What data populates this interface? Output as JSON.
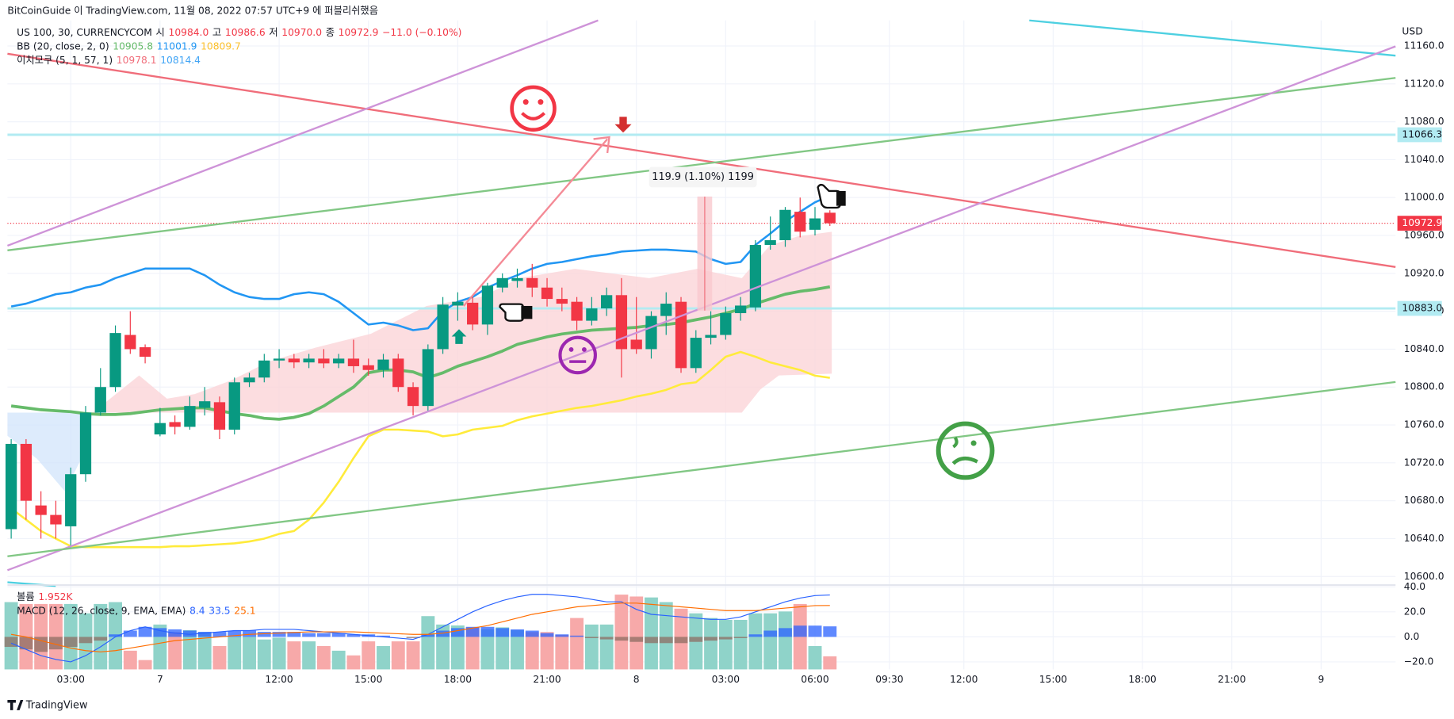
{
  "header": {
    "publisher": "BitCoinGuide 이 TradingView.com, 11월 08, 2022 07:57 UTC+9 에 퍼블리쉬했음",
    "footer": "TradingView"
  },
  "chart_data": [
    {
      "type": "candlestick",
      "legend": {
        "symbol": "US 100, 30, CURRENCYCOM",
        "ohlc": [
          [
            "시",
            "10984.0"
          ],
          [
            "고",
            "10986.6"
          ],
          [
            "저",
            "10970.0"
          ],
          [
            "종",
            "10972.9"
          ]
        ],
        "change": "−11.0 (−0.10%)",
        "bb": "BB (20, close, 2, 0)",
        "bb_values": [
          "10905.8",
          "11001.9",
          "10809.7"
        ],
        "ichimoku": "이치모쿠 (5, 1, 57, 1)",
        "ichimoku_values": [
          "10978.1",
          "10814.4"
        ]
      },
      "currency": "USD",
      "annotation": "119.9 (1.10%) 1199",
      "up_color": "#089981",
      "down_color": "#f23645",
      "open": [
        10650,
        10740,
        10675,
        10665,
        10653,
        10708,
        10773,
        10800,
        10855,
        10842,
        10750,
        10763,
        10758,
        10778,
        10784,
        10755,
        10805,
        10810,
        10828,
        10830,
        10826,
        10830,
        10825,
        10830,
        10823,
        10818,
        10830,
        10800,
        10780,
        10840,
        10886,
        10889,
        10866,
        10905,
        10912,
        10915,
        10905,
        10893,
        10890,
        10870,
        10883,
        10897,
        10850,
        10840,
        10875,
        10890,
        10820,
        10852,
        10855,
        10878,
        10884,
        10950,
        10955,
        10985,
        10966,
        10984
      ],
      "high": [
        10745,
        10745,
        10690,
        10680,
        10715,
        10780,
        10820,
        10865,
        10880,
        10845,
        10778,
        10770,
        10790,
        10800,
        10790,
        10810,
        10815,
        10835,
        10840,
        10835,
        10835,
        10840,
        10835,
        10850,
        10830,
        10835,
        10835,
        10805,
        10845,
        10895,
        10900,
        10895,
        10910,
        10920,
        10925,
        10930,
        10915,
        10905,
        10895,
        10895,
        10905,
        10915,
        10895,
        10880,
        10900,
        10895,
        10860,
        10880,
        10885,
        10895,
        10955,
        10980,
        10990,
        11000,
        10990,
        10986.6
      ],
      "low": [
        10640,
        10660,
        10640,
        10640,
        10630,
        10700,
        10770,
        10795,
        10835,
        10825,
        10748,
        10750,
        10755,
        10770,
        10745,
        10750,
        10800,
        10805,
        10820,
        10820,
        10820,
        10820,
        10820,
        10815,
        10812,
        10810,
        10795,
        10770,
        10775,
        10835,
        10870,
        10860,
        10855,
        10900,
        10905,
        10895,
        10885,
        10880,
        10860,
        10865,
        10875,
        10810,
        10835,
        10830,
        10855,
        10815,
        10815,
        10845,
        10850,
        10870,
        10880,
        10945,
        10948,
        10958,
        10960,
        10970
      ],
      "close": [
        10740,
        10680,
        10665,
        10655,
        10708,
        10773,
        10800,
        10857,
        10840,
        10832,
        10762,
        10758,
        10780,
        10785,
        10755,
        10805,
        10810,
        10828,
        10830,
        10826,
        10830,
        10825,
        10830,
        10822,
        10818,
        10829,
        10800,
        10780,
        10840,
        10887,
        10890,
        10866,
        10907,
        10915,
        10915,
        10905,
        10893,
        10888,
        10870,
        10883,
        10897,
        10840,
        10840,
        10875,
        10888,
        10820,
        10852,
        10855,
        10878,
        10886,
        10950,
        10955,
        10987,
        10964,
        10978,
        10972.9
      ],
      "series": [
        {
          "color": "#2196f3",
          "width": 2.2,
          "values": [
            10885,
            10888,
            10893,
            10898,
            10900,
            10905,
            10908,
            10915,
            10920,
            10925,
            10925,
            10925,
            10925,
            10918,
            10908,
            10900,
            10895,
            10893,
            10893,
            10898,
            10900,
            10898,
            10890,
            10878,
            10866,
            10868,
            10865,
            10860,
            10862,
            10880,
            10890,
            10895,
            10905,
            10912,
            10918,
            10925,
            10930,
            10932,
            10935,
            10938,
            10940,
            10943,
            10944,
            10945,
            10945,
            10944,
            10943,
            10935,
            10930,
            10932,
            10950,
            10962,
            10975,
            10985,
            10995,
            11001.9
          ]
        },
        {
          "color": "#66bb6a",
          "width": 3.2,
          "values": [
            10780,
            10778,
            10776,
            10775,
            10774,
            10772,
            10771,
            10771,
            10772,
            10774,
            10776,
            10777,
            10778,
            10778,
            10775,
            10772,
            10770,
            10767,
            10766,
            10768,
            10772,
            10780,
            10790,
            10800,
            10815,
            10818,
            10818,
            10816,
            10810,
            10815,
            10822,
            10827,
            10832,
            10838,
            10845,
            10849,
            10853,
            10856,
            10858,
            10860,
            10861,
            10862,
            10863,
            10865,
            10866,
            10868,
            10871,
            10874,
            10878,
            10882,
            10888,
            10893,
            10898,
            10901,
            10903,
            10905.8
          ]
        },
        {
          "color": "#ffeb3b",
          "width": 2.2,
          "values": [
            10672,
            10660,
            10648,
            10640,
            10632,
            10631,
            10631,
            10631,
            10631,
            10631,
            10631,
            10632,
            10632,
            10633,
            10634,
            10635,
            10637,
            10640,
            10645,
            10648,
            10660,
            10678,
            10700,
            10725,
            10748,
            10755,
            10755,
            10754,
            10753,
            10748,
            10750,
            10755,
            10757,
            10759,
            10765,
            10769,
            10772,
            10775,
            10778,
            10780,
            10783,
            10786,
            10790,
            10793,
            10797,
            10803,
            10805,
            10818,
            10832,
            10837,
            10832,
            10826,
            10822,
            10818,
            10812,
            10809.7
          ]
        }
      ],
      "levels": [
        {
          "value": 11066.3,
          "label": "11066.3",
          "color": "#b2ebf2"
        },
        {
          "value": 10883,
          "label": "10883.0",
          "color": "#b2ebf2"
        }
      ],
      "last_price": {
        "value": 10972.9,
        "label": "10972.9",
        "color": "#f23645"
      },
      "xlim": [
        -0.25,
        93
      ],
      "xticks": [
        {
          "value": 4,
          "label": "03:00"
        },
        {
          "value": 10,
          "label": "7"
        },
        {
          "value": 18,
          "label": "12:00"
        },
        {
          "value": 24,
          "label": "15:00"
        },
        {
          "value": 30,
          "label": "18:00"
        },
        {
          "value": 36,
          "label": "21:00"
        },
        {
          "value": 42,
          "label": "8"
        },
        {
          "value": 48,
          "label": "03:00"
        },
        {
          "value": 54,
          "label": "06:00"
        },
        {
          "value": 59,
          "label": "09:30"
        },
        {
          "value": 64,
          "label": "12:00"
        },
        {
          "value": 70,
          "label": "15:00"
        },
        {
          "value": 76,
          "label": "18:00"
        },
        {
          "value": 82,
          "label": "21:00"
        },
        {
          "value": 88,
          "label": "9"
        }
      ],
      "ylim": [
        10592,
        11187
      ],
      "yticks": [
        {
          "value": 11160,
          "label": "11160.0"
        },
        {
          "value": 11120,
          "label": "11120.0"
        },
        {
          "value": 11080,
          "label": "11080.0"
        },
        {
          "value": 11040,
          "label": "11040.0"
        },
        {
          "value": 11000,
          "label": "11000.0"
        },
        {
          "value": 10960,
          "label": "10960.0"
        },
        {
          "value": 10920,
          "label": "10920.0"
        },
        {
          "value": 10880,
          "label": "10880.0"
        },
        {
          "value": 10840,
          "label": "10840.0"
        },
        {
          "value": 10800,
          "label": "10800.0"
        },
        {
          "value": 10760,
          "label": "10760.0"
        },
        {
          "value": 10720,
          "label": "10720.0"
        },
        {
          "value": 10680,
          "label": "10680.0"
        },
        {
          "value": 10640,
          "label": "10640.0"
        },
        {
          "value": 10600,
          "label": "10600.0"
        }
      ],
      "grid": true
    },
    {
      "type": "macd",
      "legend": {
        "volume": "볼륨",
        "volume_value": "1.952K",
        "macd": "MACD (12, 26, close, 9, EMA, EMA)",
        "macd_values": [
          "8.4",
          "33.5",
          "25.1"
        ]
      },
      "volume": [
        10080,
        9800,
        9800,
        9800,
        9800,
        8400,
        9800,
        10080,
        2800,
        1400,
        6720,
        5600,
        5880,
        5600,
        3500,
        4900,
        4900,
        4480,
        4760,
        4200,
        4200,
        3500,
        2800,
        2100,
        4200,
        3500,
        4200,
        4200,
        7980,
        6720,
        6580,
        6300,
        6020,
        6300,
        5880,
        5600,
        5600,
        5180,
        7700,
        6720,
        6720,
        11200,
        10920,
        10780,
        10080,
        9100,
        8400,
        7700,
        7420,
        7420,
        8400,
        8400,
        8680,
        9800,
        3500,
        1952
      ],
      "volume_lim": [
        0,
        12500
      ],
      "volume_colors": {
        "up": "#8fd3c9",
        "down": "#f7a9a9"
      },
      "histogram": [
        -8,
        -10,
        -12,
        -10,
        -8,
        -5,
        -3,
        2,
        5,
        8,
        7,
        6,
        5,
        4,
        4,
        5,
        5,
        4,
        4,
        4,
        3,
        3,
        3,
        2,
        2,
        1,
        0,
        -1,
        2,
        5,
        7,
        8,
        8,
        7,
        6,
        5,
        3,
        2,
        1,
        -1,
        -2,
        -3,
        -4,
        -5,
        -5,
        -5,
        -4,
        -3,
        -2,
        -1,
        2,
        5,
        7,
        9,
        9,
        8.4
      ],
      "histogram_colors": {
        "positive": "#2962ff",
        "negative": "#8d6e63"
      },
      "series": [
        {
          "color": "#2962ff",
          "values": [
            -5,
            -10,
            -15,
            -18,
            -20,
            -15,
            -8,
            0,
            5,
            8,
            5,
            3,
            2,
            3,
            4,
            5,
            5,
            6,
            6,
            6,
            5,
            4,
            3,
            2,
            1,
            0,
            -1,
            -2,
            2,
            8,
            14,
            20,
            25,
            29,
            32,
            34,
            34,
            33,
            32,
            30,
            28,
            28,
            22,
            18,
            17,
            16,
            15,
            14,
            14,
            16,
            20,
            24,
            28,
            31,
            33,
            33.5
          ]
        },
        {
          "color": "#ff6d00",
          "values": [
            2,
            0,
            -3,
            -6,
            -9,
            -11,
            -12,
            -11,
            -9,
            -7,
            -5,
            -3,
            -2,
            -1,
            0,
            1,
            2,
            2.5,
            3,
            3.5,
            4,
            4,
            4,
            4,
            3.5,
            3,
            2.5,
            2,
            2,
            3,
            5,
            7,
            9,
            12,
            15,
            18,
            20,
            22,
            24,
            25,
            26,
            27,
            27,
            26,
            25,
            24,
            23,
            22,
            21,
            21,
            21,
            22,
            23,
            24,
            25,
            25.1
          ]
        }
      ],
      "ylim": [
        -26,
        40.7
      ],
      "yticks": [
        {
          "value": 40,
          "label": "40.0"
        },
        {
          "value": 20,
          "label": "20.0"
        },
        {
          "value": 0,
          "label": "0.0"
        },
        {
          "value": -20,
          "label": "−20.0"
        }
      ]
    }
  ]
}
